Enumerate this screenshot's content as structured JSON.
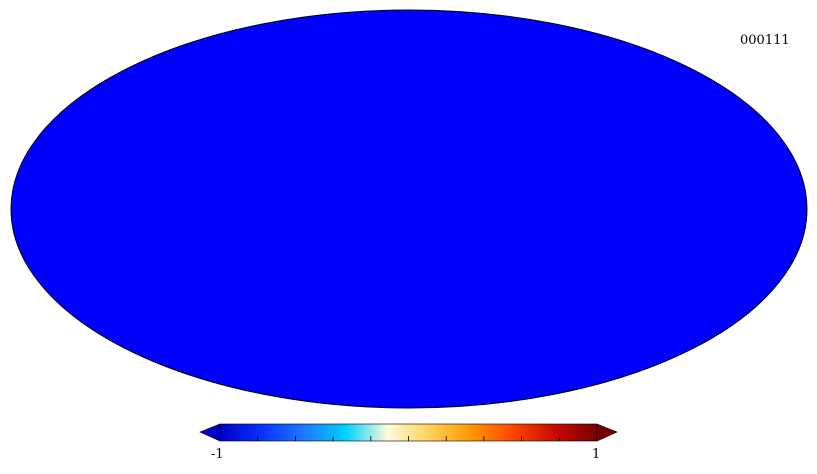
{
  "map": {
    "projection": "mollweide",
    "identifier": "000111"
  },
  "colorbar": {
    "min_label": "-1",
    "max_label": "1",
    "extend": "both",
    "colormap": [
      "#0000c8",
      "#0a32ff",
      "#1e78ff",
      "#00d0ff",
      "#fffadc",
      "#ffd15a",
      "#ff9600",
      "#ff4600",
      "#c80a00",
      "#780000"
    ],
    "tick_count": 10
  }
}
